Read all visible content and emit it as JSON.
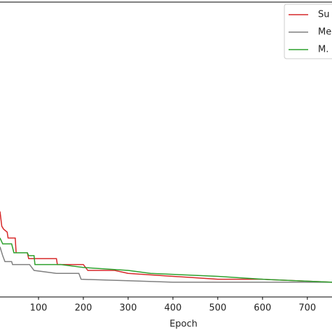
{
  "chart_data": {
    "type": "line",
    "xlabel": "Epoch",
    "xlim": [
      14,
      755
    ],
    "ylim": [
      0,
      100
    ],
    "xticks": [
      100,
      200,
      300,
      400,
      500,
      600,
      700
    ],
    "legend": "upper right",
    "series": [
      {
        "name": "Su",
        "color": "#d62728",
        "x": [
          14,
          18,
          22,
          30,
          32,
          48,
          50,
          75,
          78,
          140,
          142,
          200,
          210,
          270,
          300,
          400,
          500,
          600,
          755
        ],
        "values": [
          29,
          24,
          23,
          22,
          20,
          20,
          15,
          15,
          13,
          13,
          11,
          11,
          9,
          9,
          8,
          7,
          6,
          6,
          5
        ]
      },
      {
        "name": "Me",
        "color": "#7f7f7f",
        "x": [
          14,
          20,
          25,
          40,
          42,
          80,
          90,
          140,
          190,
          195,
          300,
          400,
          600,
          755
        ],
        "values": [
          17,
          14,
          12,
          12,
          11,
          11,
          9,
          8,
          8,
          6,
          5.5,
          5,
          5,
          5
        ]
      },
      {
        "name": "M.",
        "color": "#2ca02c",
        "x": [
          14,
          20,
          40,
          45,
          75,
          78,
          90,
          92,
          150,
          200,
          300,
          350,
          500,
          600,
          755
        ],
        "values": [
          20,
          18,
          18,
          15,
          15,
          14,
          14,
          11,
          11,
          10,
          9,
          8,
          7,
          6,
          5
        ]
      }
    ]
  }
}
